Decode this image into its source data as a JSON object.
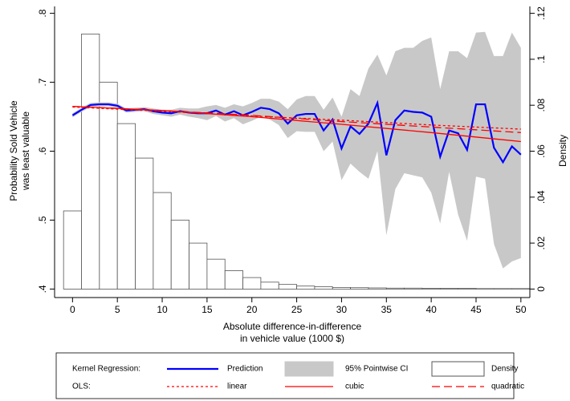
{
  "chart_data": {
    "type": "combo",
    "x_label": [
      "Absolute difference-in-difference",
      "in vehicle value (1000 $)"
    ],
    "y_label": [
      "Probability Sold Vehicle",
      "was least valuable"
    ],
    "y2_label": "Density",
    "xlim": [
      -2,
      51
    ],
    "xticks": [
      0,
      5,
      10,
      15,
      20,
      25,
      30,
      35,
      40,
      45,
      50
    ],
    "ylim": [
      0.39,
      0.81
    ],
    "yticks": [
      {
        "value": 0.4,
        "label": ".4"
      },
      {
        "value": 0.5,
        "label": ".5"
      },
      {
        "value": 0.6,
        "label": ".6"
      },
      {
        "value": 0.7,
        "label": ".7"
      },
      {
        "value": 0.8,
        "label": ".8"
      }
    ],
    "y2lim": [
      -0.003,
      0.123
    ],
    "y2ticks": [
      0,
      {
        "value": 0.02,
        "label": ".02"
      },
      {
        "value": 0.04,
        "label": ".04"
      },
      {
        "value": 0.06,
        "label": ".06"
      },
      {
        "value": 0.08,
        "label": ".08"
      },
      {
        "value": 0.1,
        "label": ".1"
      },
      {
        "value": 0.12,
        "label": ".12"
      }
    ],
    "legend_rows": [
      "Kernel Regression:",
      "OLS:"
    ],
    "series": [
      {
        "name": "Density",
        "type": "histogram",
        "axis": "y2",
        "color": "#ffffff",
        "edgecolor": "#555555",
        "bins": [
          -1,
          1,
          3,
          5,
          7,
          9,
          11,
          13,
          15,
          17,
          19,
          21,
          23,
          25,
          27,
          29,
          31,
          33,
          35,
          37,
          39,
          41,
          43,
          45,
          47,
          49,
          51
        ],
        "values": [
          0.034,
          0.111,
          0.09,
          0.072,
          0.057,
          0.042,
          0.03,
          0.02,
          0.013,
          0.008,
          0.005,
          0.003,
          0.002,
          0.0013,
          0.001,
          0.0007,
          0.0006,
          0.0005,
          0.0004,
          0.0004,
          0.0003,
          0.0003,
          0.0003,
          0.0002,
          0.0002,
          0.0002
        ]
      },
      {
        "name": "95% Pointwise CI",
        "type": "band",
        "color": "#c8c8c8",
        "x": [
          0,
          1,
          2,
          3,
          4,
          5,
          6,
          7,
          8,
          9,
          10,
          11,
          12,
          13,
          14,
          15,
          16,
          17,
          18,
          19,
          20,
          21,
          22,
          23,
          24,
          25,
          26,
          27,
          28,
          29,
          30,
          31,
          32,
          33,
          34,
          35,
          36,
          37,
          38,
          39,
          40,
          41,
          42,
          43,
          44,
          45,
          46,
          47,
          48,
          49,
          50
        ],
        "upper": [
          0.655,
          0.663,
          0.67,
          0.671,
          0.671,
          0.669,
          0.662,
          0.663,
          0.664,
          0.662,
          0.66,
          0.66,
          0.663,
          0.662,
          0.662,
          0.665,
          0.667,
          0.663,
          0.668,
          0.665,
          0.67,
          0.676,
          0.676,
          0.672,
          0.661,
          0.675,
          0.68,
          0.68,
          0.66,
          0.678,
          0.65,
          0.69,
          0.68,
          0.72,
          0.74,
          0.71,
          0.745,
          0.75,
          0.75,
          0.76,
          0.765,
          0.69,
          0.745,
          0.745,
          0.735,
          0.772,
          0.773,
          0.738,
          0.738,
          0.772,
          0.75
        ],
        "lower": [
          0.649,
          0.657,
          0.664,
          0.665,
          0.665,
          0.663,
          0.656,
          0.657,
          0.658,
          0.654,
          0.652,
          0.65,
          0.653,
          0.65,
          0.648,
          0.645,
          0.651,
          0.643,
          0.648,
          0.639,
          0.644,
          0.65,
          0.646,
          0.638,
          0.619,
          0.629,
          0.628,
          0.628,
          0.6,
          0.614,
          0.558,
          0.582,
          0.57,
          0.56,
          0.6,
          0.478,
          0.545,
          0.568,
          0.565,
          0.562,
          0.54,
          0.495,
          0.57,
          0.508,
          0.47,
          0.563,
          0.56,
          0.465,
          0.43,
          0.44,
          0.445
        ]
      },
      {
        "name": "Prediction",
        "type": "line",
        "color": "#0000ff",
        "linestyle": "solid",
        "width": 2.2,
        "x": [
          0,
          1,
          2,
          3,
          4,
          5,
          6,
          7,
          8,
          9,
          10,
          11,
          12,
          13,
          14,
          15,
          16,
          17,
          18,
          19,
          20,
          21,
          22,
          23,
          24,
          25,
          26,
          27,
          28,
          29,
          30,
          31,
          32,
          33,
          34,
          35,
          36,
          37,
          38,
          39,
          40,
          41,
          42,
          43,
          44,
          45,
          46,
          47,
          48,
          49,
          50
        ],
        "values": [
          0.652,
          0.66,
          0.667,
          0.668,
          0.668,
          0.666,
          0.659,
          0.66,
          0.661,
          0.658,
          0.656,
          0.655,
          0.658,
          0.656,
          0.655,
          0.655,
          0.659,
          0.653,
          0.658,
          0.652,
          0.657,
          0.663,
          0.661,
          0.655,
          0.64,
          0.652,
          0.654,
          0.654,
          0.63,
          0.646,
          0.604,
          0.636,
          0.625,
          0.64,
          0.67,
          0.594,
          0.645,
          0.659,
          0.657,
          0.656,
          0.65,
          0.592,
          0.63,
          0.626,
          0.602,
          0.668,
          0.668,
          0.605,
          0.584,
          0.607,
          0.595
        ]
      },
      {
        "name": "linear",
        "type": "line",
        "color": "#ff0000",
        "linestyle": "dotted",
        "width": 1.3,
        "x": [
          0,
          10,
          20,
          30,
          40,
          50
        ],
        "values": [
          0.664,
          0.658,
          0.651,
          0.645,
          0.638,
          0.632
        ]
      },
      {
        "name": "cubic",
        "type": "line",
        "color": "#ff0000",
        "linestyle": "solid",
        "width": 1.3,
        "x": [
          0,
          10,
          20,
          30,
          40,
          50
        ],
        "values": [
          0.665,
          0.659,
          0.65,
          0.639,
          0.627,
          0.614
        ]
      },
      {
        "name": "quadratic",
        "type": "line",
        "color": "#ff0000",
        "linestyle": "dashed",
        "width": 1.3,
        "x": [
          0,
          10,
          20,
          30,
          40,
          50
        ],
        "values": [
          0.665,
          0.659,
          0.652,
          0.643,
          0.635,
          0.627
        ]
      }
    ],
    "legend_order": [
      2,
      1,
      0,
      3,
      4,
      5
    ]
  }
}
